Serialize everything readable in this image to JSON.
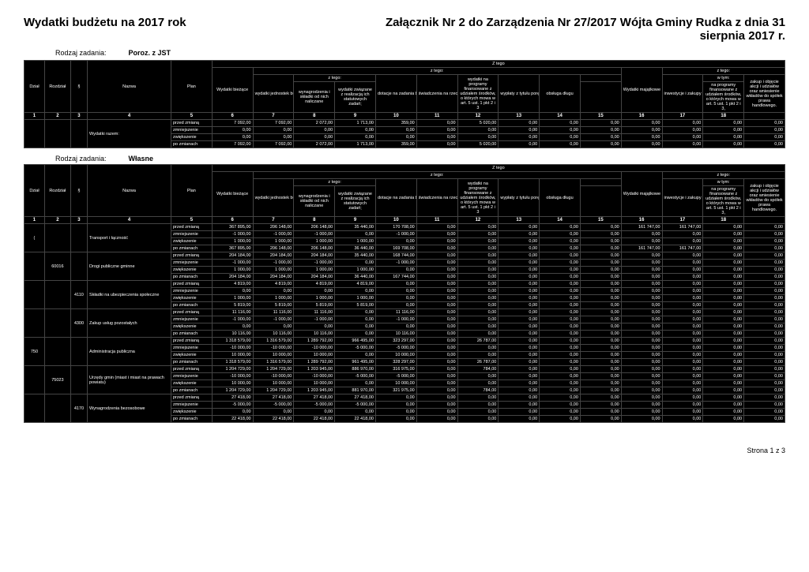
{
  "header": {
    "title_left": "Wydatki budżetu na 2017 rok",
    "title_right": "Załącznik Nr 2 do Zarządzenia Nr 27/2017 Wójta Gminy Rudka z dnia 31 sierpnia 2017 r."
  },
  "task1": {
    "label": "Rodzaj zadania:",
    "value": "Poroz. z JST"
  },
  "task2": {
    "label": "Rodzaj zadania:",
    "value": "Własne"
  },
  "cols": {
    "dzial": "Dział",
    "rozdzial": "Rozdział",
    "par": "§",
    "nazwa": "Nazwa",
    "plan": "Plan",
    "ztego": "Z tego",
    "ztego2": "z tego:",
    "wtym": "w tym:",
    "biezace": "Wydatki bieżące",
    "jedn": "wydatki jednostek budżetowych,",
    "wynagr": "wynagrodzenia i składki od nich naliczane",
    "zwiaz": "wydatki związane z realizacją ich statutowych zadań;",
    "dotacje": "dotacje na zadania bieżące",
    "swiadcz": "świadczenia na rzecz osób fizycznych;",
    "progr": "wydatki na programy finansowane z udziałem środków, o których mowa w art. 5 ust. 1 pkt 2 i 3",
    "wyplaty": "wypłaty z tytułu poręczeń i gwarancji",
    "obsluga": "obsługa długu",
    "majat": "Wydatki majątkowe",
    "inwest": "inwestycje i zakupy inwestycyjne",
    "progr2": "na programy finansowane z udziałem środków, o których mowa w art. 5 ust. 1 pkt 2 i 3,",
    "zakup": "zakup i objęcie akcji i udziałów oraz wniesienie wkładów do spółek prawa handlowego."
  },
  "nums": [
    "1",
    "2",
    "3",
    "4",
    "5",
    "6",
    "7",
    "8",
    "9",
    "10",
    "11",
    "12",
    "13",
    "14",
    "15",
    "16",
    "17",
    "18"
  ],
  "rowlabels": {
    "przed": "przed zmianą",
    "zmn": "zmniejszenie",
    "zwk": "zwiększenie",
    "po": "po zmianach"
  },
  "t1_name": "Wydatki razem:",
  "t1": [
    [
      "7 092,00",
      "7 092,00",
      "2 072,00",
      "1 713,00",
      "359,00",
      "0,00",
      "5 020,00",
      "0,00",
      "0,00",
      "0,00",
      "0,00",
      "0,00",
      "0,00",
      "0,00"
    ],
    [
      "0,00",
      "0,00",
      "0,00",
      "0,00",
      "0,00",
      "0,00",
      "0,00",
      "0,00",
      "0,00",
      "0,00",
      "0,00",
      "0,00",
      "0,00",
      "0,00"
    ],
    [
      "0,00",
      "0,00",
      "0,00",
      "0,00",
      "0,00",
      "0,00",
      "0,00",
      "0,00",
      "0,00",
      "0,00",
      "0,00",
      "0,00",
      "0,00",
      "0,00"
    ],
    [
      "7 092,00",
      "7 092,00",
      "2 072,00",
      "1 713,00",
      "359,00",
      "0,00",
      "5 020,00",
      "0,00",
      "0,00",
      "0,00",
      "0,00",
      "0,00",
      "0,00",
      "0,00"
    ]
  ],
  "t2": {
    "groups": [
      {
        "dzial": "(",
        "rozdz": "",
        "par": "",
        "nazwa": "Transport i łączność",
        "rows": [
          [
            "367 895,00",
            "206 148,00",
            "206 148,00",
            "35 440,00",
            "170 708,00",
            "0,00",
            "0,00",
            "0,00",
            "0,00",
            "0,00",
            "161 747,00",
            "161 747,00",
            "0,00",
            "0,00"
          ],
          [
            "-1 000,00",
            "-1 000,00",
            "-1 000,00",
            "0,00",
            "-1 000,00",
            "0,00",
            "0,00",
            "0,00",
            "0,00",
            "0,00",
            "0,00",
            "0,00",
            "0,00",
            "0,00"
          ],
          [
            "1 000,00",
            "1 000,00",
            "1 000,00",
            "1 000,00",
            "0,00",
            "0,00",
            "0,00",
            "0,00",
            "0,00",
            "0,00",
            "0,00",
            "0,00",
            "0,00",
            "0,00"
          ],
          [
            "367 895,00",
            "206 148,00",
            "206 148,00",
            "36 440,00",
            "169 708,00",
            "0,00",
            "0,00",
            "0,00",
            "0,00",
            "0,00",
            "161 747,00",
            "161 747,00",
            "0,00",
            "0,00"
          ]
        ]
      },
      {
        "dzial": "",
        "rozdz": "60016",
        "par": "",
        "nazwa": "Drogi publiczne gminne",
        "rows": [
          [
            "204 184,00",
            "204 184,00",
            "204 184,00",
            "35 440,00",
            "168 744,00",
            "0,00",
            "0,00",
            "0,00",
            "0,00",
            "0,00",
            "0,00",
            "0,00",
            "0,00",
            "0,00"
          ],
          [
            "-1 000,00",
            "-1 000,00",
            "-1 000,00",
            "0,00",
            "-1 000,00",
            "0,00",
            "0,00",
            "0,00",
            "0,00",
            "0,00",
            "0,00",
            "0,00",
            "0,00",
            "0,00"
          ],
          [
            "1 000,00",
            "1 000,00",
            "1 000,00",
            "1 000,00",
            "0,00",
            "0,00",
            "0,00",
            "0,00",
            "0,00",
            "0,00",
            "0,00",
            "0,00",
            "0,00",
            "0,00"
          ],
          [
            "204 184,00",
            "204 184,00",
            "204 184,00",
            "36 440,00",
            "167 744,00",
            "0,00",
            "0,00",
            "0,00",
            "0,00",
            "0,00",
            "0,00",
            "0,00",
            "0,00",
            "0,00"
          ]
        ]
      },
      {
        "dzial": "",
        "rozdz": "",
        "par": "4110",
        "nazwa": "Składki na ubezpieczenia społeczne",
        "rows": [
          [
            "4 819,00",
            "4 819,00",
            "4 819,00",
            "4 819,00",
            "0,00",
            "0,00",
            "0,00",
            "0,00",
            "0,00",
            "0,00",
            "0,00",
            "0,00",
            "0,00",
            "0,00"
          ],
          [
            "0,00",
            "0,00",
            "0,00",
            "0,00",
            "0,00",
            "0,00",
            "0,00",
            "0,00",
            "0,00",
            "0,00",
            "0,00",
            "0,00",
            "0,00",
            "0,00"
          ],
          [
            "1 000,00",
            "1 000,00",
            "1 000,00",
            "1 000,00",
            "0,00",
            "0,00",
            "0,00",
            "0,00",
            "0,00",
            "0,00",
            "0,00",
            "0,00",
            "0,00",
            "0,00"
          ],
          [
            "5 819,00",
            "5 819,00",
            "5 819,00",
            "5 819,00",
            "0,00",
            "0,00",
            "0,00",
            "0,00",
            "0,00",
            "0,00",
            "0,00",
            "0,00",
            "0,00",
            "0,00"
          ]
        ]
      },
      {
        "dzial": "",
        "rozdz": "",
        "par": "4300",
        "nazwa": "Zakup usług pozostałych",
        "rows": [
          [
            "11 116,00",
            "11 116,00",
            "11 116,00",
            "0,00",
            "11 116,00",
            "0,00",
            "0,00",
            "0,00",
            "0,00",
            "0,00",
            "0,00",
            "0,00",
            "0,00",
            "0,00"
          ],
          [
            "-1 000,00",
            "-1 000,00",
            "-1 000,00",
            "0,00",
            "-1 000,00",
            "0,00",
            "0,00",
            "0,00",
            "0,00",
            "0,00",
            "0,00",
            "0,00",
            "0,00",
            "0,00"
          ],
          [
            "0,00",
            "0,00",
            "0,00",
            "0,00",
            "0,00",
            "0,00",
            "0,00",
            "0,00",
            "0,00",
            "0,00",
            "0,00",
            "0,00",
            "0,00",
            "0,00"
          ],
          [
            "10 116,00",
            "10 116,00",
            "10 116,00",
            "0,00",
            "10 116,00",
            "0,00",
            "0,00",
            "0,00",
            "0,00",
            "0,00",
            "0,00",
            "0,00",
            "0,00",
            "0,00"
          ]
        ]
      },
      {
        "dzial": "750",
        "rozdz": "",
        "par": "",
        "nazwa": "Administracja publiczna",
        "rows": [
          [
            "1 318 579,00",
            "1 316 579,00",
            "1 289 792,00",
            "966 495,00",
            "323 297,00",
            "0,00",
            "26 787,00",
            "0,00",
            "0,00",
            "0,00",
            "0,00",
            "0,00",
            "0,00",
            "0,00"
          ],
          [
            "-10 000,00",
            "-10 000,00",
            "-10 000,00",
            "-5 000,00",
            "-5 000,00",
            "0,00",
            "0,00",
            "0,00",
            "0,00",
            "0,00",
            "0,00",
            "0,00",
            "0,00",
            "0,00"
          ],
          [
            "10 000,00",
            "10 000,00",
            "10 000,00",
            "0,00",
            "10 000,00",
            "0,00",
            "0,00",
            "0,00",
            "0,00",
            "0,00",
            "0,00",
            "0,00",
            "0,00",
            "0,00"
          ],
          [
            "1 318 579,00",
            "1 316 579,00",
            "1 289 792,00",
            "961 495,00",
            "328 297,00",
            "0,00",
            "26 787,00",
            "0,00",
            "0,00",
            "0,00",
            "0,00",
            "0,00",
            "0,00",
            "0,00"
          ]
        ]
      },
      {
        "dzial": "",
        "rozdz": "75023",
        "par": "",
        "nazwa": "Urzędy gmin (miast i miast na prawach powiatu)",
        "rows": [
          [
            "1 204 729,00",
            "1 204 729,00",
            "1 203 945,00",
            "886 970,00",
            "316 975,00",
            "0,00",
            "784,00",
            "0,00",
            "0,00",
            "0,00",
            "0,00",
            "0,00",
            "0,00",
            "0,00"
          ],
          [
            "-10 000,00",
            "-10 000,00",
            "-10 000,00",
            "-5 000,00",
            "-5 000,00",
            "0,00",
            "0,00",
            "0,00",
            "0,00",
            "0,00",
            "0,00",
            "0,00",
            "0,00",
            "0,00"
          ],
          [
            "10 000,00",
            "10 000,00",
            "10 000,00",
            "0,00",
            "10 000,00",
            "0,00",
            "0,00",
            "0,00",
            "0,00",
            "0,00",
            "0,00",
            "0,00",
            "0,00",
            "0,00"
          ],
          [
            "1 204 729,00",
            "1 204 729,00",
            "1 203 945,00",
            "881 970,00",
            "321 975,00",
            "0,00",
            "784,00",
            "0,00",
            "0,00",
            "0,00",
            "0,00",
            "0,00",
            "0,00",
            "0,00"
          ]
        ]
      },
      {
        "dzial": "",
        "rozdz": "",
        "par": "4170",
        "nazwa": "Wynagrodzenia bezosobowe",
        "rows": [
          [
            "27 418,00",
            "27 418,00",
            "27 418,00",
            "27 418,00",
            "0,00",
            "0,00",
            "0,00",
            "0,00",
            "0,00",
            "0,00",
            "0,00",
            "0,00",
            "0,00",
            "0,00"
          ],
          [
            "-5 000,00",
            "-5 000,00",
            "-5 000,00",
            "-5 000,00",
            "0,00",
            "0,00",
            "0,00",
            "0,00",
            "0,00",
            "0,00",
            "0,00",
            "0,00",
            "0,00",
            "0,00"
          ],
          [
            "0,00",
            "0,00",
            "0,00",
            "0,00",
            "0,00",
            "0,00",
            "0,00",
            "0,00",
            "0,00",
            "0,00",
            "0,00",
            "0,00",
            "0,00",
            "0,00"
          ],
          [
            "22 418,00",
            "22 418,00",
            "22 418,00",
            "22 418,00",
            "0,00",
            "0,00",
            "0,00",
            "0,00",
            "0,00",
            "0,00",
            "0,00",
            "0,00",
            "0,00",
            "0,00"
          ]
        ]
      }
    ]
  },
  "footer": "Strona 1 z 3"
}
